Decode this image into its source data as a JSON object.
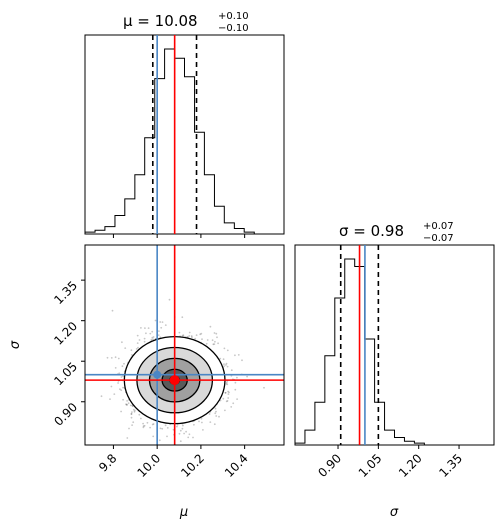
{
  "chart_data": {
    "type": "corner",
    "parameters": [
      "μ",
      "σ"
    ],
    "truths": [
      10.0,
      1.0
    ],
    "truth_color": "#4a86c5",
    "fit_values": [
      10.08,
      0.98
    ],
    "fit_color": "#ff0000",
    "quantiles": [
      [
        9.98,
        10.18
      ],
      [
        0.91,
        1.05
      ]
    ],
    "titles": [
      {
        "text": "μ = 10.08",
        "plus": "+0.10",
        "minus": "−0.10"
      },
      {
        "text": "σ = 0.98",
        "plus": "+0.07",
        "minus": "−0.07"
      }
    ],
    "xlabels": [
      "μ",
      "σ"
    ],
    "ylabel": "σ",
    "ranges": [
      [
        9.67,
        10.58
      ],
      [
        0.74,
        1.48
      ]
    ],
    "ticks_mu": [
      9.8,
      10.0,
      10.2,
      10.4
    ],
    "tick_labels_mu": [
      "9.8",
      "10.0",
      "10.2",
      "10.4"
    ],
    "ticks_sigma": [
      0.9,
      1.05,
      1.2,
      1.35
    ],
    "tick_labels_sigma": [
      "0.90",
      "1.05",
      "1.20",
      "1.35"
    ],
    "hist_mu": {
      "edges": [
        9.67,
        9.716,
        9.761,
        9.807,
        9.852,
        9.898,
        9.943,
        9.989,
        10.034,
        10.08,
        10.125,
        10.171,
        10.216,
        10.262,
        10.307,
        10.353,
        10.398,
        10.444,
        10.489,
        10.535,
        10.58
      ],
      "counts": [
        1,
        2,
        4,
        10,
        19,
        32,
        52,
        84,
        100,
        95,
        85,
        55,
        32,
        15,
        6,
        3,
        1,
        0,
        0,
        0
      ]
    },
    "hist_sigma": {
      "edges": [
        0.74,
        0.777,
        0.814,
        0.851,
        0.888,
        0.925,
        0.962,
        0.999,
        1.036,
        1.073,
        1.11,
        1.147,
        1.184,
        1.221,
        1.258,
        1.295,
        1.332,
        1.369,
        1.406,
        1.443,
        1.48
      ],
      "counts": [
        1,
        8,
        23,
        48,
        79,
        100,
        96,
        57,
        23,
        8,
        4,
        2,
        1,
        0,
        0,
        0,
        0,
        0,
        0,
        0
      ]
    },
    "contour_levels": [
      0.5,
      1.0,
      1.5,
      2.0
    ]
  }
}
